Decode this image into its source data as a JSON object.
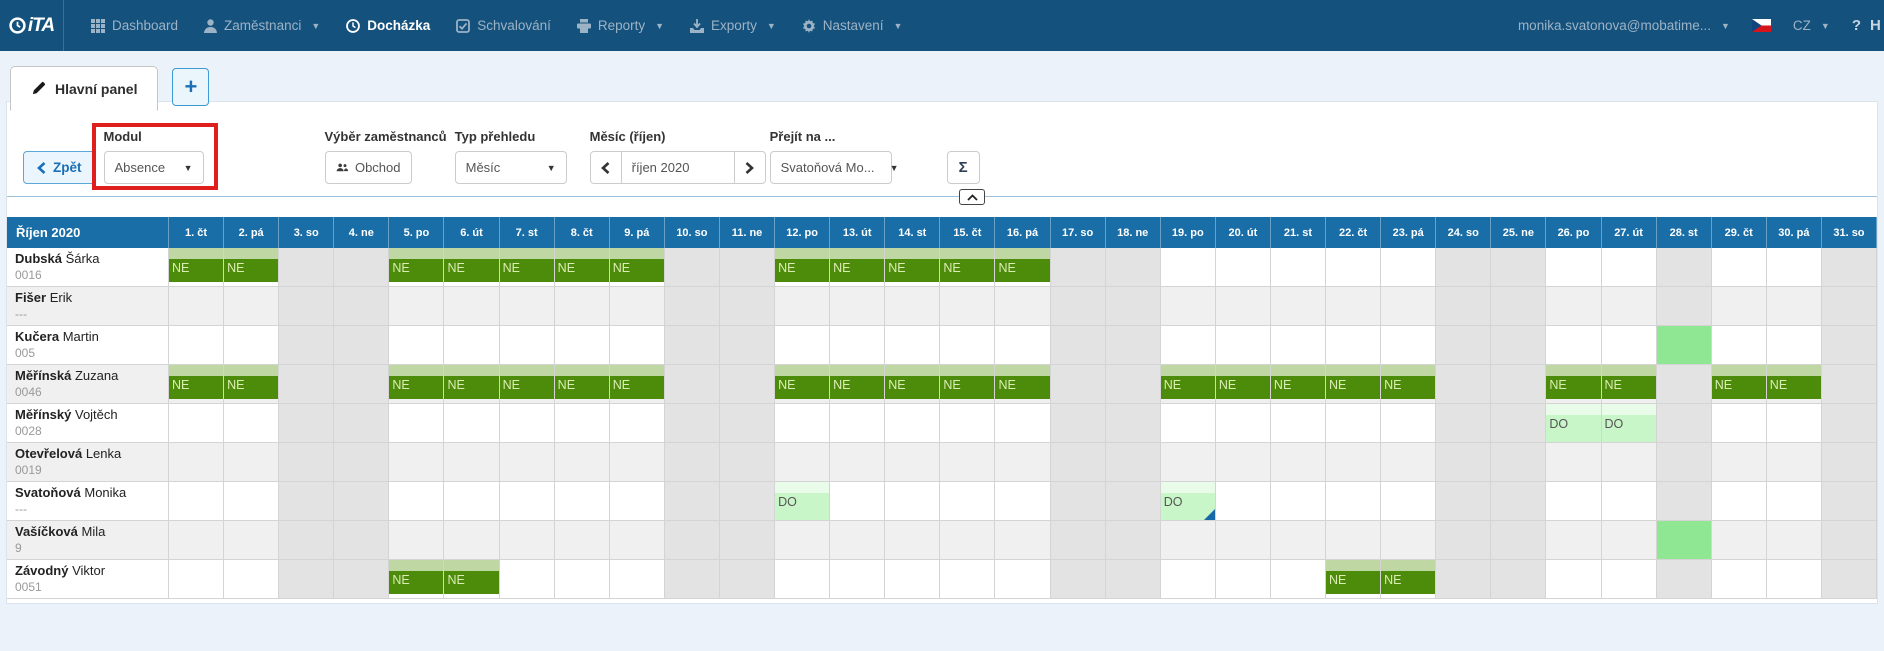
{
  "nav": {
    "logo": "iTA",
    "items": [
      {
        "label": "Dashboard",
        "icon": "grid-icon",
        "caret": false,
        "active": false
      },
      {
        "label": "Zaměstnanci",
        "icon": "user-icon",
        "caret": true,
        "active": false
      },
      {
        "label": "Docházka",
        "icon": "clock-icon",
        "caret": false,
        "active": true
      },
      {
        "label": "Schvalování",
        "icon": "check-icon",
        "caret": false,
        "active": false
      },
      {
        "label": "Reporty",
        "icon": "printer-icon",
        "caret": true,
        "active": false
      },
      {
        "label": "Exporty",
        "icon": "export-icon",
        "caret": true,
        "active": false
      },
      {
        "label": "Nastavení",
        "icon": "gear-icon",
        "caret": true,
        "active": false
      }
    ],
    "user": "monika.svatonova@mobatime...",
    "lang": "CZ",
    "help": "?",
    "help_more": "H"
  },
  "tabs": {
    "main_label": "Hlavní panel",
    "add_label": "+"
  },
  "filters": {
    "back_label": "Zpět",
    "modul_label": "Modul",
    "modul_value": "Absence",
    "vyber_label": "Výběr zaměstnanců",
    "vyber_value": "Obchod",
    "typ_label": "Typ přehledu",
    "typ_value": "Měsíc",
    "mesic_label": "Měsíc (říjen)",
    "mesic_value": "říjen 2020",
    "prejit_label": "Přejít na ...",
    "prejit_value": "Svatoňová Mo...",
    "sum_label": "Σ"
  },
  "table": {
    "title": "Říjen 2020",
    "day_labels": [
      "1. čt",
      "2. pá",
      "3. so",
      "4. ne",
      "5. po",
      "6. út",
      "7. st",
      "8. čt",
      "9. pá",
      "10. so",
      "11. ne",
      "12. po",
      "13. út",
      "14. st",
      "15. čt",
      "16. pá",
      "17. so",
      "18. ne",
      "19. po",
      "20. út",
      "21. st",
      "22. čt",
      "23. pá",
      "24. so",
      "25. ne",
      "26. po",
      "27. út",
      "28. st",
      "29. čt",
      "30. pá",
      "31. so"
    ],
    "weekend_days": [
      3,
      4,
      10,
      11,
      17,
      18,
      24,
      25,
      31
    ],
    "holiday_days": [
      28
    ],
    "absence_labels": {
      "ne": "NE",
      "do": "DO"
    },
    "employees": [
      {
        "last": "Dubská",
        "first": "Šárka",
        "code": "0016",
        "ne": [
          1,
          2,
          5,
          6,
          7,
          8,
          9,
          12,
          13,
          14,
          15,
          16
        ],
        "do": [],
        "full_green": [],
        "note": []
      },
      {
        "last": "Fišer",
        "first": "Erik",
        "code": "---",
        "ne": [],
        "do": [],
        "full_green": [],
        "note": []
      },
      {
        "last": "Kučera",
        "first": "Martin",
        "code": "005",
        "ne": [],
        "do": [],
        "full_green": [
          28
        ],
        "note": []
      },
      {
        "last": "Měřínská",
        "first": "Zuzana",
        "code": "0046",
        "ne": [
          1,
          2,
          5,
          6,
          7,
          8,
          9,
          12,
          13,
          14,
          15,
          16,
          19,
          20,
          21,
          22,
          23,
          26,
          27,
          29,
          30
        ],
        "do": [],
        "full_green": [],
        "note": []
      },
      {
        "last": "Měřínský",
        "first": "Vojtěch",
        "code": "0028",
        "ne": [],
        "do": [
          26,
          27
        ],
        "full_green": [],
        "note": []
      },
      {
        "last": "Otevřelová",
        "first": "Lenka",
        "code": "0019",
        "ne": [],
        "do": [],
        "full_green": [],
        "note": []
      },
      {
        "last": "Svatoňová",
        "first": "Monika",
        "code": "---",
        "ne": [],
        "do": [
          12,
          19
        ],
        "full_green": [],
        "note": [
          19
        ]
      },
      {
        "last": "Vašíčková",
        "first": "Mila",
        "code": "9",
        "ne": [],
        "do": [],
        "full_green": [
          28
        ],
        "note": []
      },
      {
        "last": "Závodný",
        "first": "Viktor",
        "code": "0051",
        "ne": [
          5,
          6,
          22,
          23
        ],
        "do": [],
        "full_green": [],
        "note": []
      }
    ]
  },
  "colors": {
    "nav_bg": "#14517c",
    "header_blue": "#1a6ea8",
    "ne_dark": "#4c8c0a",
    "ne_strip": "#bed7a3",
    "do_fill": "#c9f6c9",
    "do_strip": "#e8fce9",
    "full_green": "#90e793",
    "weekend_gray": "#e3e3e3",
    "red_highlight": "#df1e1e",
    "note_blue": "#1768a8"
  }
}
